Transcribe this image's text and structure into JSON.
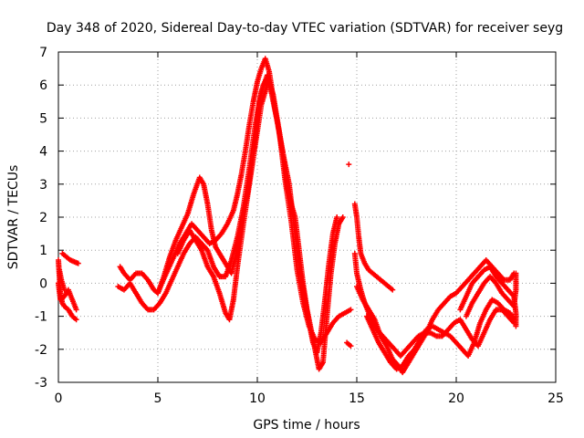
{
  "chart_data": {
    "type": "scatter",
    "title": "Day 348 of 2020, Sidereal Day-to-day VTEC variation (SDTVAR) for receiver seyg",
    "xlabel": "GPS time / hours",
    "ylabel": "SDTVAR / TECUs",
    "xlim": [
      0,
      25
    ],
    "ylim": [
      -3,
      7
    ],
    "xticks": [
      "0",
      "5",
      "10",
      "15",
      "20",
      "25"
    ],
    "yticks": [
      "-3",
      "-2",
      "-1",
      "0",
      "1",
      "2",
      "3",
      "4",
      "5",
      "6",
      "7"
    ],
    "grid": true,
    "marker": "+",
    "color": "#ff0000",
    "series": [
      {
        "points": [
          [
            0.0,
            0.7
          ],
          [
            0.05,
            0.2
          ],
          [
            0.1,
            -0.3
          ],
          [
            0.2,
            -0.6
          ],
          [
            0.3,
            -0.7
          ],
          [
            0.5,
            -0.8
          ],
          [
            0.7,
            -1.0
          ],
          [
            0.9,
            -1.1
          ]
        ]
      },
      {
        "points": [
          [
            0.0,
            0.0
          ],
          [
            0.1,
            -0.5
          ],
          [
            0.3,
            -0.4
          ],
          [
            0.5,
            -0.2
          ],
          [
            0.7,
            -0.5
          ],
          [
            0.9,
            -0.8
          ]
        ]
      },
      {
        "points": [
          [
            0.2,
            0.9
          ],
          [
            0.4,
            0.8
          ],
          [
            0.6,
            0.7
          ],
          [
            0.8,
            0.65
          ],
          [
            1.0,
            0.6
          ]
        ]
      },
      {
        "points": [
          [
            0.05,
            0.4
          ],
          [
            0.15,
            0.1
          ],
          [
            0.25,
            -0.1
          ],
          [
            0.3,
            -0.2
          ]
        ]
      },
      {
        "points": [
          [
            3.1,
            0.5
          ],
          [
            3.3,
            0.3
          ],
          [
            3.6,
            0.1
          ],
          [
            3.9,
            0.3
          ],
          [
            4.2,
            0.3
          ],
          [
            4.5,
            0.1
          ],
          [
            4.8,
            -0.2
          ],
          [
            5.0,
            -0.3
          ],
          [
            5.2,
            0.0
          ],
          [
            5.5,
            0.4
          ],
          [
            5.8,
            0.8
          ],
          [
            6.1,
            1.2
          ],
          [
            6.4,
            1.5
          ],
          [
            6.7,
            1.8
          ],
          [
            7.0,
            1.6
          ],
          [
            7.3,
            1.4
          ],
          [
            7.6,
            1.2
          ],
          [
            7.9,
            1.3
          ],
          [
            8.2,
            1.5
          ],
          [
            8.5,
            1.8
          ],
          [
            8.8,
            2.2
          ],
          [
            9.0,
            2.7
          ],
          [
            9.2,
            3.3
          ],
          [
            9.4,
            4.0
          ],
          [
            9.6,
            4.8
          ],
          [
            9.8,
            5.5
          ],
          [
            10.0,
            6.1
          ],
          [
            10.2,
            6.5
          ],
          [
            10.4,
            6.8
          ],
          [
            10.6,
            6.4
          ],
          [
            10.8,
            5.6
          ],
          [
            11.0,
            4.9
          ],
          [
            11.2,
            4.2
          ],
          [
            11.4,
            3.6
          ],
          [
            11.6,
            3.0
          ],
          [
            11.8,
            2.0
          ],
          [
            12.0,
            1.0
          ],
          [
            12.2,
            0.2
          ],
          [
            12.4,
            -0.5
          ],
          [
            12.6,
            -1.2
          ],
          [
            12.8,
            -1.8
          ],
          [
            13.0,
            -2.1
          ],
          [
            13.2,
            -1.5
          ],
          [
            13.4,
            -0.5
          ],
          [
            13.6,
            0.6
          ],
          [
            13.8,
            1.5
          ],
          [
            14.0,
            2.0
          ]
        ]
      },
      {
        "points": [
          [
            3.0,
            -0.1
          ],
          [
            3.3,
            -0.2
          ],
          [
            3.6,
            0.0
          ],
          [
            3.9,
            -0.3
          ],
          [
            4.2,
            -0.6
          ],
          [
            4.5,
            -0.8
          ],
          [
            4.8,
            -0.8
          ],
          [
            5.1,
            -0.6
          ],
          [
            5.4,
            -0.3
          ],
          [
            5.7,
            0.1
          ],
          [
            6.0,
            0.5
          ],
          [
            6.3,
            0.9
          ],
          [
            6.6,
            1.2
          ],
          [
            6.9,
            1.4
          ],
          [
            7.2,
            1.2
          ],
          [
            7.5,
            1.0
          ],
          [
            7.8,
            0.5
          ],
          [
            8.1,
            0.2
          ],
          [
            8.4,
            0.2
          ],
          [
            8.7,
            0.7
          ],
          [
            9.0,
            1.4
          ],
          [
            9.3,
            2.3
          ],
          [
            9.6,
            3.5
          ],
          [
            9.9,
            4.8
          ],
          [
            10.2,
            5.8
          ],
          [
            10.5,
            6.3
          ],
          [
            10.8,
            5.7
          ],
          [
            11.1,
            4.6
          ],
          [
            11.4,
            3.1
          ],
          [
            11.7,
            1.9
          ],
          [
            12.0,
            0.4
          ],
          [
            12.3,
            -0.6
          ],
          [
            12.6,
            -1.3
          ],
          [
            12.9,
            -1.7
          ],
          [
            13.2,
            -1.8
          ],
          [
            13.5,
            -1.5
          ],
          [
            13.8,
            -1.2
          ],
          [
            14.1,
            -1.0
          ],
          [
            14.4,
            -0.9
          ],
          [
            14.7,
            -0.8
          ]
        ]
      },
      {
        "points": [
          [
            5.0,
            -0.3
          ],
          [
            5.3,
            0.2
          ],
          [
            5.6,
            0.8
          ],
          [
            5.9,
            1.3
          ],
          [
            6.2,
            1.7
          ],
          [
            6.5,
            2.1
          ],
          [
            6.8,
            2.7
          ],
          [
            7.1,
            3.2
          ],
          [
            7.3,
            3.0
          ],
          [
            7.5,
            2.4
          ],
          [
            7.7,
            1.6
          ],
          [
            7.9,
            1.1
          ],
          [
            8.1,
            0.9
          ],
          [
            8.3,
            0.7
          ],
          [
            8.5,
            0.5
          ],
          [
            8.7,
            0.3
          ],
          [
            8.9,
            0.8
          ],
          [
            9.1,
            1.5
          ],
          [
            9.3,
            2.2
          ],
          [
            9.5,
            2.7
          ],
          [
            9.7,
            3.5
          ],
          [
            9.9,
            4.4
          ],
          [
            10.1,
            5.5
          ],
          [
            10.3,
            6.0
          ],
          [
            10.5,
            6.2
          ],
          [
            10.7,
            5.8
          ],
          [
            10.9,
            5.2
          ],
          [
            11.1,
            4.6
          ],
          [
            11.3,
            3.9
          ],
          [
            11.5,
            2.9
          ],
          [
            11.7,
            2.4
          ],
          [
            11.9,
            2.0
          ],
          [
            12.1,
            1.0
          ],
          [
            12.3,
            0.0
          ],
          [
            12.5,
            -0.8
          ],
          [
            12.7,
            -1.4
          ],
          [
            12.9,
            -2.0
          ],
          [
            13.1,
            -2.6
          ],
          [
            13.3,
            -2.4
          ],
          [
            13.5,
            -1.0
          ],
          [
            13.7,
            0.3
          ],
          [
            13.9,
            1.2
          ],
          [
            14.1,
            1.8
          ],
          [
            14.3,
            2.0
          ]
        ]
      },
      {
        "points": [
          [
            6.0,
            0.9
          ],
          [
            6.3,
            1.3
          ],
          [
            6.6,
            1.6
          ],
          [
            6.9,
            1.3
          ],
          [
            7.2,
            1.0
          ],
          [
            7.5,
            0.5
          ],
          [
            7.8,
            0.2
          ],
          [
            8.1,
            -0.3
          ],
          [
            8.4,
            -0.9
          ],
          [
            8.6,
            -1.1
          ],
          [
            8.8,
            -0.5
          ],
          [
            9.0,
            0.5
          ],
          [
            9.3,
            1.8
          ],
          [
            9.6,
            3.0
          ],
          [
            9.9,
            4.2
          ],
          [
            10.2,
            5.4
          ],
          [
            10.5,
            6.0
          ]
        ]
      },
      {
        "points": [
          [
            14.6,
            3.6
          ]
        ]
      },
      {
        "points": [
          [
            14.5,
            -1.8
          ],
          [
            14.7,
            -1.9
          ]
        ]
      },
      {
        "points": [
          [
            14.9,
            2.4
          ],
          [
            15.0,
            2.0
          ],
          [
            15.1,
            1.4
          ],
          [
            15.2,
            0.9
          ],
          [
            15.4,
            0.6
          ],
          [
            15.6,
            0.4
          ],
          [
            15.8,
            0.3
          ],
          [
            16.0,
            0.2
          ],
          [
            16.2,
            0.1
          ],
          [
            16.4,
            0.0
          ],
          [
            16.6,
            -0.1
          ],
          [
            16.8,
            -0.2
          ]
        ]
      },
      {
        "points": [
          [
            14.9,
            0.9
          ],
          [
            15.0,
            0.3
          ],
          [
            15.2,
            -0.2
          ],
          [
            15.4,
            -0.6
          ],
          [
            15.6,
            -0.9
          ],
          [
            15.8,
            -1.2
          ],
          [
            16.0,
            -1.4
          ],
          [
            16.3,
            -1.6
          ],
          [
            16.6,
            -1.8
          ],
          [
            16.9,
            -2.0
          ],
          [
            17.2,
            -2.2
          ],
          [
            17.5,
            -2.0
          ],
          [
            17.8,
            -1.8
          ],
          [
            18.1,
            -1.6
          ],
          [
            18.4,
            -1.5
          ],
          [
            18.7,
            -1.5
          ],
          [
            19.0,
            -1.6
          ],
          [
            19.3,
            -1.6
          ],
          [
            19.6,
            -1.4
          ],
          [
            19.9,
            -1.2
          ],
          [
            20.2,
            -1.1
          ],
          [
            20.5,
            -1.4
          ],
          [
            20.8,
            -1.7
          ],
          [
            21.1,
            -1.9
          ],
          [
            21.4,
            -1.5
          ],
          [
            21.7,
            -1.1
          ],
          [
            22.0,
            -0.8
          ],
          [
            22.3,
            -0.8
          ],
          [
            22.6,
            -1.0
          ],
          [
            22.9,
            -1.2
          ]
        ]
      },
      {
        "points": [
          [
            15.0,
            -0.1
          ],
          [
            15.3,
            -0.5
          ],
          [
            15.6,
            -0.8
          ],
          [
            15.9,
            -1.1
          ],
          [
            16.2,
            -1.6
          ],
          [
            16.5,
            -1.9
          ],
          [
            16.8,
            -2.3
          ],
          [
            17.1,
            -2.5
          ],
          [
            17.3,
            -2.7
          ],
          [
            17.6,
            -2.4
          ],
          [
            17.9,
            -2.1
          ],
          [
            18.2,
            -1.8
          ],
          [
            18.5,
            -1.5
          ],
          [
            18.8,
            -1.1
          ],
          [
            19.1,
            -0.8
          ],
          [
            19.4,
            -0.6
          ],
          [
            19.7,
            -0.4
          ],
          [
            20.0,
            -0.3
          ],
          [
            20.3,
            -0.1
          ],
          [
            20.6,
            0.1
          ],
          [
            20.9,
            0.3
          ],
          [
            21.2,
            0.5
          ],
          [
            21.5,
            0.7
          ],
          [
            21.8,
            0.5
          ],
          [
            22.1,
            0.3
          ],
          [
            22.4,
            0.1
          ],
          [
            22.7,
            0.1
          ],
          [
            22.9,
            0.3
          ]
        ]
      },
      {
        "points": [
          [
            15.5,
            -1.0
          ],
          [
            15.8,
            -1.4
          ],
          [
            16.1,
            -1.8
          ],
          [
            16.4,
            -2.1
          ],
          [
            16.7,
            -2.4
          ],
          [
            17.0,
            -2.6
          ],
          [
            17.3,
            -2.5
          ],
          [
            17.6,
            -2.2
          ],
          [
            17.9,
            -2.0
          ],
          [
            18.2,
            -1.7
          ],
          [
            18.5,
            -1.4
          ],
          [
            18.8,
            -1.3
          ],
          [
            19.1,
            -1.4
          ],
          [
            19.4,
            -1.5
          ],
          [
            19.7,
            -1.6
          ],
          [
            20.0,
            -1.8
          ],
          [
            20.3,
            -2.0
          ],
          [
            20.6,
            -2.2
          ],
          [
            20.9,
            -1.8
          ],
          [
            21.2,
            -1.2
          ],
          [
            21.5,
            -0.8
          ],
          [
            21.8,
            -0.5
          ],
          [
            22.1,
            -0.6
          ],
          [
            22.4,
            -0.8
          ],
          [
            22.7,
            -0.9
          ],
          [
            22.9,
            -1.1
          ]
        ]
      },
      {
        "points": [
          [
            20.5,
            -1.0
          ],
          [
            20.8,
            -0.6
          ],
          [
            21.1,
            -0.3
          ],
          [
            21.4,
            0.0
          ],
          [
            21.7,
            0.2
          ],
          [
            22.0,
            0.0
          ],
          [
            22.3,
            -0.3
          ],
          [
            22.6,
            -0.5
          ],
          [
            22.9,
            -0.7
          ],
          [
            23.0,
            -0.2
          ],
          [
            23.0,
            0.3
          ]
        ]
      },
      {
        "points": [
          [
            20.2,
            -0.8
          ],
          [
            20.5,
            -0.4
          ],
          [
            20.8,
            0.0
          ],
          [
            21.1,
            0.2
          ],
          [
            21.4,
            0.4
          ],
          [
            21.7,
            0.5
          ],
          [
            22.0,
            0.2
          ],
          [
            22.3,
            0.0
          ],
          [
            22.6,
            -0.2
          ],
          [
            22.9,
            -0.4
          ],
          [
            23.0,
            -0.9
          ],
          [
            23.0,
            -1.3
          ]
        ]
      }
    ]
  }
}
